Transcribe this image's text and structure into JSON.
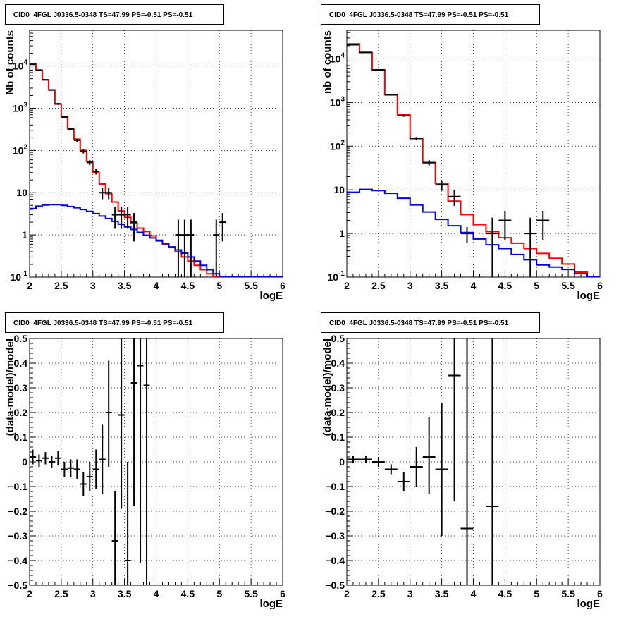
{
  "chart_data": [
    {
      "type": "line",
      "title": "CID0_4FGL J0336.5-0348 TS=47.99 PS=-0.51 PS=-0.51",
      "xlabel": "logE",
      "ylabel": "Nb of counts",
      "log_y": true,
      "xlim": [
        2,
        6
      ],
      "ylim": [
        0.1,
        70000
      ],
      "grid": true,
      "x_ticks": [
        "2",
        "2.5",
        "3",
        "3.5",
        "4",
        "4.5",
        "5",
        "5.5",
        "6"
      ],
      "y_ticks": [
        {
          "v": 0.1,
          "label": "10",
          "sup": "-1"
        },
        {
          "v": 1,
          "label": "1",
          "sup": ""
        },
        {
          "v": 10,
          "label": "10",
          "sup": ""
        },
        {
          "v": 100,
          "label": "10",
          "sup": "2"
        },
        {
          "v": 1000,
          "label": "10",
          "sup": "3"
        },
        {
          "v": 10000,
          "label": "10",
          "sup": "4"
        }
      ],
      "bin_edges": [
        2.0,
        2.1,
        2.2,
        2.3,
        2.4,
        2.5,
        2.6,
        2.7,
        2.8,
        2.9,
        3.0,
        3.1,
        3.2,
        3.3,
        3.4,
        3.5,
        3.6,
        3.7,
        3.8,
        3.9,
        4.0,
        4.1,
        4.2,
        4.3,
        4.4,
        4.5,
        4.6,
        4.7,
        4.8,
        4.9,
        5.0,
        5.1,
        5.2,
        5.3,
        5.4,
        5.5,
        5.6,
        5.7,
        5.8,
        5.9,
        6.0
      ],
      "series": [
        {
          "color": "#ff0000",
          "style": "step",
          "values": [
            11000,
            8000,
            4700,
            2700,
            1250,
            620,
            330,
            185,
            100,
            55,
            30,
            16,
            9.5,
            6,
            3.7,
            2.6,
            1.9,
            1.45,
            1.2,
            0.95,
            0.75,
            0.6,
            0.5,
            0.4,
            0.3,
            0.24,
            0.19,
            0.15,
            0.12,
            0.1,
            0.1,
            0.1,
            0.1,
            0.1,
            0.1,
            0.1,
            0.1,
            0.1,
            0.1,
            0.1
          ]
        },
        {
          "color": "#0000dd",
          "style": "step",
          "values": [
            4.2,
            4.8,
            5.1,
            5.2,
            5.2,
            5.0,
            4.7,
            4.4,
            4.0,
            3.6,
            3.2,
            2.8,
            2.45,
            2.1,
            1.8,
            1.55,
            1.35,
            1.15,
            0.98,
            0.85,
            0.72,
            0.62,
            0.52,
            0.44,
            0.37,
            0.3,
            0.24,
            0.19,
            0.15,
            0.12,
            0.1,
            0.1,
            0.1,
            0.1,
            0.1,
            0.1,
            0.1,
            0.1,
            0.1,
            0.1
          ]
        },
        {
          "color": "#000000",
          "style": "points",
          "points": [
            {
              "x": 2.05,
              "y": 11000,
              "lo": 10800,
              "hi": 11200
            },
            {
              "x": 2.15,
              "y": 8000,
              "lo": 7800,
              "hi": 8200
            },
            {
              "x": 2.25,
              "y": 4700,
              "lo": 4550,
              "hi": 4850
            },
            {
              "x": 2.35,
              "y": 2700,
              "lo": 2600,
              "hi": 2800
            },
            {
              "x": 2.45,
              "y": 1270,
              "lo": 1200,
              "hi": 1340
            },
            {
              "x": 2.55,
              "y": 620,
              "lo": 580,
              "hi": 660
            },
            {
              "x": 2.65,
              "y": 320,
              "lo": 300,
              "hi": 340
            },
            {
              "x": 2.75,
              "y": 175,
              "lo": 160,
              "hi": 190
            },
            {
              "x": 2.85,
              "y": 95,
              "lo": 85,
              "hi": 105
            },
            {
              "x": 2.95,
              "y": 52,
              "lo": 45,
              "hi": 59
            },
            {
              "x": 3.05,
              "y": 32,
              "lo": 27,
              "hi": 37
            },
            {
              "x": 3.15,
              "y": 10,
              "lo": 7,
              "hi": 13
            },
            {
              "x": 3.25,
              "y": 10,
              "lo": 7,
              "hi": 13
            },
            {
              "x": 3.35,
              "y": 3,
              "lo": 1.4,
              "hi": 4.6
            },
            {
              "x": 3.45,
              "y": 3,
              "lo": 1.4,
              "hi": 4.6
            },
            {
              "x": 3.55,
              "y": 3,
              "lo": 1.4,
              "hi": 4.6
            },
            {
              "x": 3.65,
              "y": 2,
              "lo": 0.7,
              "hi": 3.3
            },
            {
              "x": 4.35,
              "y": 1,
              "lo": 0.1,
              "hi": 2.3
            },
            {
              "x": 4.45,
              "y": 1,
              "lo": 0.1,
              "hi": 2.3
            },
            {
              "x": 4.55,
              "y": 1,
              "lo": 0.1,
              "hi": 2.3
            },
            {
              "x": 4.95,
              "y": 1,
              "lo": 0.1,
              "hi": 2.3
            },
            {
              "x": 5.05,
              "y": 2,
              "lo": 0.7,
              "hi": 3.3
            }
          ]
        }
      ]
    },
    {
      "type": "line",
      "title": "CID0_4FGL J0336.5-0348 TS=47.99 PS=-0.51 PS=-0.51",
      "xlabel": "logE",
      "ylabel": "nb of counts",
      "log_y": true,
      "xlim": [
        2,
        6
      ],
      "ylim": [
        0.1,
        45000
      ],
      "grid": true,
      "x_ticks": [
        "2",
        "2.5",
        "3",
        "3.5",
        "4",
        "4.5",
        "5",
        "5.5",
        "6"
      ],
      "y_ticks": [
        {
          "v": 0.1,
          "label": "10",
          "sup": "-1"
        },
        {
          "v": 1,
          "label": "1",
          "sup": ""
        },
        {
          "v": 10,
          "label": "10",
          "sup": ""
        },
        {
          "v": 100,
          "label": "10",
          "sup": "2"
        },
        {
          "v": 1000,
          "label": "10",
          "sup": "3"
        },
        {
          "v": 10000,
          "label": "10",
          "sup": "4"
        }
      ],
      "bin_edges": [
        2.0,
        2.2,
        2.4,
        2.6,
        2.8,
        3.0,
        3.2,
        3.4,
        3.6,
        3.8,
        4.0,
        4.2,
        4.4,
        4.6,
        4.8,
        5.0,
        5.2,
        5.4,
        5.6,
        5.8,
        6.0
      ],
      "series": [
        {
          "color": "#ff0000",
          "style": "step",
          "values": [
            22000,
            14000,
            5600,
            1500,
            520,
            150,
            42,
            14,
            5.5,
            2.7,
            1.6,
            1.1,
            0.8,
            0.6,
            0.45,
            0.35,
            0.27,
            0.2,
            0.13,
            0.1
          ]
        },
        {
          "color": "#0000dd",
          "style": "step",
          "values": [
            8.8,
            10.2,
            9.6,
            8.3,
            6.4,
            4.5,
            3.1,
            2.1,
            1.5,
            1.05,
            0.75,
            0.55,
            0.45,
            0.33,
            0.25,
            0.19,
            0.17,
            0.15,
            0.12,
            0.1
          ]
        },
        {
          "color": "#000000",
          "style": "points",
          "points": [
            {
              "x": 2.1,
              "y": 21000,
              "lo": 20700,
              "hi": 21300
            },
            {
              "x": 2.3,
              "y": 14000,
              "lo": 13800,
              "hi": 14200
            },
            {
              "x": 2.5,
              "y": 5600,
              "lo": 5450,
              "hi": 5750
            },
            {
              "x": 2.7,
              "y": 1500,
              "lo": 1450,
              "hi": 1550
            },
            {
              "x": 2.9,
              "y": 500,
              "lo": 470,
              "hi": 530
            },
            {
              "x": 3.1,
              "y": 150,
              "lo": 137,
              "hi": 163
            },
            {
              "x": 3.3,
              "y": 42,
              "lo": 36,
              "hi": 48
            },
            {
              "x": 3.5,
              "y": 13,
              "lo": 9.5,
              "hi": 16.5
            },
            {
              "x": 3.7,
              "y": 7,
              "lo": 4.3,
              "hi": 9.7
            },
            {
              "x": 3.9,
              "y": 1,
              "lo": 0.6,
              "hi": 1.4
            },
            {
              "x": 4.3,
              "y": 1,
              "lo": 0.1,
              "hi": 2.3
            },
            {
              "x": 4.5,
              "y": 2,
              "lo": 0.7,
              "hi": 3.3
            },
            {
              "x": 4.9,
              "y": 1,
              "lo": 0.1,
              "hi": 2.3
            },
            {
              "x": 5.1,
              "y": 2,
              "lo": 0.7,
              "hi": 3.3
            }
          ]
        }
      ]
    },
    {
      "type": "scatter",
      "title": "CID0_4FGL J0336.5-0348 TS=47.99 PS=-0.51 PS=-0.51",
      "xlabel": "logE",
      "ylabel": "(data-model)/model",
      "log_y": false,
      "xlim": [
        2,
        6
      ],
      "ylim": [
        -0.5,
        0.5
      ],
      "grid": true,
      "x_ticks": [
        "2",
        "2.5",
        "3",
        "3.5",
        "4",
        "4.5",
        "5",
        "5.5",
        "6"
      ],
      "y_ticks": [
        {
          "v": -0.5,
          "label": "−0.5",
          "sup": ""
        },
        {
          "v": -0.4,
          "label": "−0.4",
          "sup": ""
        },
        {
          "v": -0.3,
          "label": "−0.3",
          "sup": ""
        },
        {
          "v": -0.2,
          "label": "−0.2",
          "sup": ""
        },
        {
          "v": -0.1,
          "label": "−0.1",
          "sup": ""
        },
        {
          "v": 0,
          "label": "0",
          "sup": ""
        },
        {
          "v": 0.1,
          "label": "0.1",
          "sup": ""
        },
        {
          "v": 0.2,
          "label": "0.2",
          "sup": ""
        },
        {
          "v": 0.3,
          "label": "0.3",
          "sup": ""
        },
        {
          "v": 0.4,
          "label": "0.4",
          "sup": ""
        },
        {
          "v": 0.5,
          "label": "0.5",
          "sup": ""
        }
      ],
      "bin_width": 0.1,
      "series": [
        {
          "color": "#000000",
          "style": "points",
          "points": [
            {
              "x": 2.05,
              "y": 0.02,
              "lo": -0.01,
              "hi": 0.05
            },
            {
              "x": 2.15,
              "y": 0.005,
              "lo": -0.02,
              "hi": 0.03
            },
            {
              "x": 2.25,
              "y": 0.015,
              "lo": -0.01,
              "hi": 0.04
            },
            {
              "x": 2.35,
              "y": 0.0,
              "lo": -0.025,
              "hi": 0.025
            },
            {
              "x": 2.45,
              "y": 0.015,
              "lo": -0.015,
              "hi": 0.045
            },
            {
              "x": 2.55,
              "y": -0.03,
              "lo": -0.06,
              "hi": 0.0
            },
            {
              "x": 2.65,
              "y": -0.025,
              "lo": -0.06,
              "hi": 0.01
            },
            {
              "x": 2.75,
              "y": -0.03,
              "lo": -0.07,
              "hi": 0.01
            },
            {
              "x": 2.85,
              "y": -0.09,
              "lo": -0.14,
              "hi": -0.04
            },
            {
              "x": 2.95,
              "y": -0.06,
              "lo": -0.12,
              "hi": 0.0
            },
            {
              "x": 3.05,
              "y": -0.03,
              "lo": -0.11,
              "hi": 0.05
            },
            {
              "x": 3.15,
              "y": 0.01,
              "lo": -0.13,
              "hi": 0.15
            },
            {
              "x": 3.25,
              "y": 0.2,
              "lo": -0.02,
              "hi": 0.41
            },
            {
              "x": 3.35,
              "y": -0.32,
              "lo": -0.5,
              "hi": -0.12
            },
            {
              "x": 3.45,
              "y": 0.19,
              "lo": -0.19,
              "hi": 0.5
            },
            {
              "x": 3.55,
              "y": -0.4,
              "lo": -0.5,
              "hi": 0.0
            },
            {
              "x": 3.65,
              "y": 0.32,
              "lo": -0.18,
              "hi": 0.5
            },
            {
              "x": 3.75,
              "y": 0.39,
              "lo": -0.41,
              "hi": 0.5
            },
            {
              "x": 3.85,
              "y": 0.31,
              "lo": -0.5,
              "hi": 0.5
            }
          ]
        }
      ]
    },
    {
      "type": "scatter",
      "title": "CID0_4FGL J0336.5-0348 TS=47.99 PS=-0.51 PS=-0.51",
      "xlabel": "logE",
      "ylabel": "(data-model)/model",
      "log_y": false,
      "xlim": [
        2,
        6
      ],
      "ylim": [
        -0.5,
        0.5
      ],
      "grid": true,
      "x_ticks": [
        "2",
        "2.5",
        "3",
        "3.5",
        "4",
        "4.5",
        "5",
        "5.5",
        "6"
      ],
      "y_ticks": [
        {
          "v": -0.5,
          "label": "−0.5",
          "sup": ""
        },
        {
          "v": -0.4,
          "label": "−0.4",
          "sup": ""
        },
        {
          "v": -0.3,
          "label": "−0.3",
          "sup": ""
        },
        {
          "v": -0.2,
          "label": "−0.2",
          "sup": ""
        },
        {
          "v": -0.1,
          "label": "−0.1",
          "sup": ""
        },
        {
          "v": 0,
          "label": "0",
          "sup": ""
        },
        {
          "v": 0.1,
          "label": "0.1",
          "sup": ""
        },
        {
          "v": 0.2,
          "label": "0.2",
          "sup": ""
        },
        {
          "v": 0.3,
          "label": "0.3",
          "sup": ""
        },
        {
          "v": 0.4,
          "label": "0.4",
          "sup": ""
        },
        {
          "v": 0.5,
          "label": "0.5",
          "sup": ""
        }
      ],
      "bin_width": 0.2,
      "series": [
        {
          "color": "#000000",
          "style": "points",
          "points": [
            {
              "x": 2.1,
              "y": 0.01,
              "lo": -0.005,
              "hi": 0.025
            },
            {
              "x": 2.3,
              "y": 0.01,
              "lo": -0.005,
              "hi": 0.025
            },
            {
              "x": 2.5,
              "y": 0.0,
              "lo": -0.02,
              "hi": 0.02
            },
            {
              "x": 2.7,
              "y": -0.03,
              "lo": -0.05,
              "hi": -0.01
            },
            {
              "x": 2.9,
              "y": -0.08,
              "lo": -0.12,
              "hi": -0.04
            },
            {
              "x": 3.1,
              "y": -0.02,
              "lo": -0.1,
              "hi": 0.06
            },
            {
              "x": 3.3,
              "y": 0.02,
              "lo": -0.13,
              "hi": 0.18
            },
            {
              "x": 3.5,
              "y": -0.03,
              "lo": -0.3,
              "hi": 0.24
            },
            {
              "x": 3.7,
              "y": 0.35,
              "lo": -0.16,
              "hi": 0.5
            },
            {
              "x": 3.9,
              "y": -0.27,
              "lo": -0.5,
              "hi": 0.5
            },
            {
              "x": 4.3,
              "y": -0.18,
              "lo": -0.5,
              "hi": 0.5
            }
          ]
        }
      ]
    }
  ]
}
